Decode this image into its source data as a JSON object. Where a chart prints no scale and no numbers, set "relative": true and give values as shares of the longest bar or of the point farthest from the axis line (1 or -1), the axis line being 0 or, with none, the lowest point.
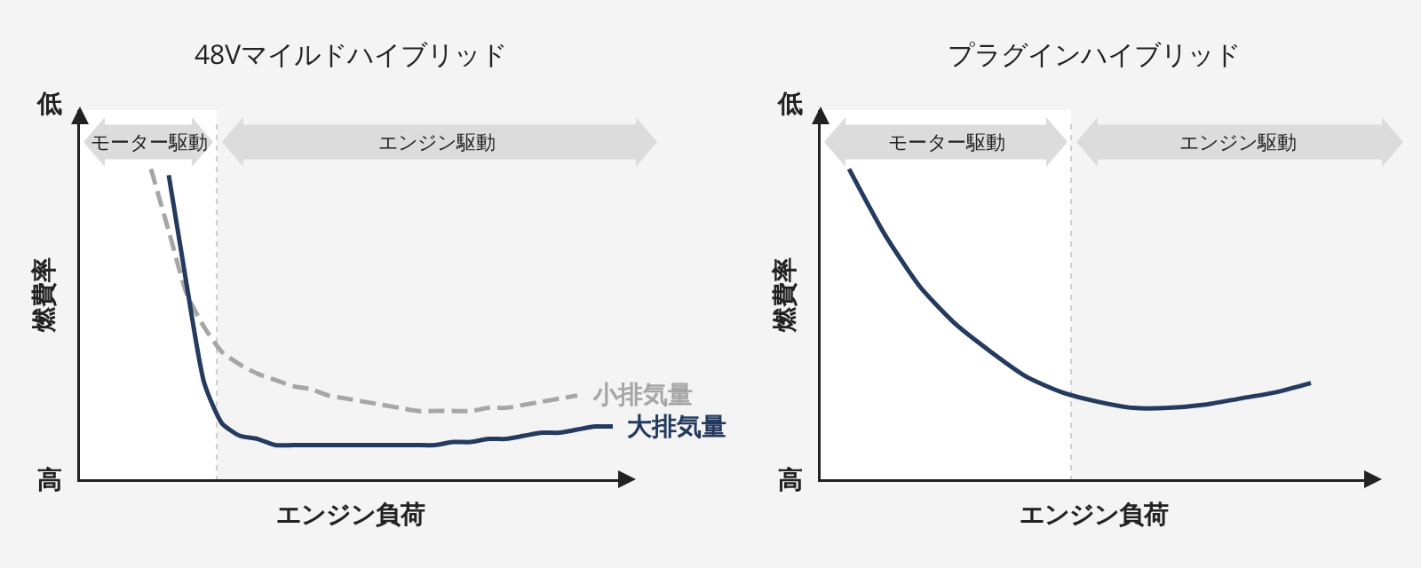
{
  "chart_data": [
    {
      "type": "line",
      "title": "48Vマイルドハイブリッド",
      "xlabel": "エンジン負荷",
      "ylabel": "燃費率",
      "relative": true,
      "legend": false,
      "categories": [
        null,
        null,
        null,
        null,
        null,
        null,
        null,
        null,
        null,
        null,
        null,
        null,
        null,
        null,
        null,
        null,
        null,
        null,
        null,
        null,
        null,
        null,
        null,
        null,
        null,
        null,
        null,
        null,
        null,
        null,
        null
      ],
      "series": [
        {
          "name": "小排気量",
          "color": "#a6a6a6",
          "line_style": "dashed",
          "values": [
            null,
            null,
            null,
            null,
            1.0,
            0.8,
            0.6,
            0.49,
            0.41,
            0.37,
            0.34,
            0.32,
            0.3,
            0.29,
            0.27,
            0.26,
            0.25,
            0.24,
            0.23,
            0.22,
            0.22,
            0.22,
            0.22,
            0.23,
            0.23,
            0.24,
            0.25,
            0.26,
            0.27,
            null,
            null
          ]
        },
        {
          "name": "大排気量",
          "color": "#243a5e",
          "line_style": "solid",
          "values": [
            null,
            null,
            null,
            null,
            null,
            0.98,
            0.63,
            0.31,
            0.18,
            0.14,
            0.13,
            0.11,
            0.11,
            0.11,
            0.11,
            0.11,
            0.11,
            0.11,
            0.11,
            0.11,
            0.11,
            0.12,
            0.12,
            0.13,
            0.13,
            0.14,
            0.15,
            0.15,
            0.16,
            0.17,
            0.17
          ]
        }
      ],
      "annotations": [
        "低",
        "高",
        "モーター駆動",
        "エンジン駆動"
      ]
    },
    {
      "type": "line",
      "title": "プラグインハイブリッド",
      "xlabel": "エンジン負荷",
      "ylabel": "燃費率",
      "relative": true,
      "legend": false,
      "categories": [
        null,
        null,
        null,
        null,
        null,
        null,
        null,
        null,
        null,
        null,
        null,
        null,
        null,
        null,
        null,
        null
      ],
      "series": [
        {
          "color": "#243a5e",
          "line_style": "solid",
          "values": [
            null,
            1.0,
            0.79,
            0.62,
            0.5,
            0.41,
            0.33,
            0.28,
            0.25,
            0.23,
            0.23,
            0.24,
            0.26,
            0.28,
            0.31,
            null
          ]
        }
      ],
      "annotations": [
        "低",
        "高",
        "モーター駆動",
        "エンジン駆動"
      ]
    }
  ]
}
